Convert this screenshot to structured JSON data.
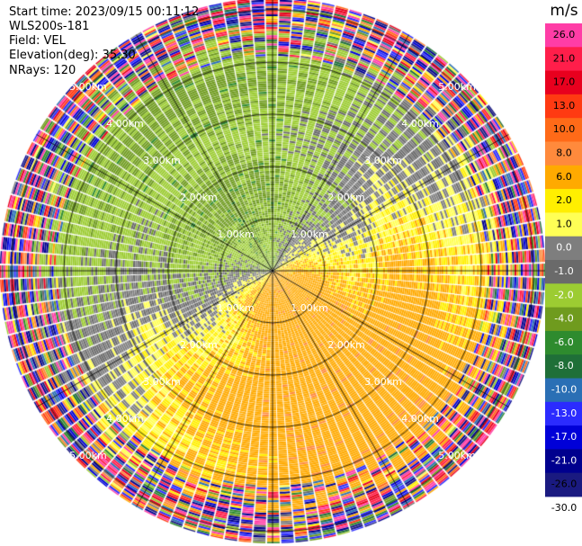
{
  "info": {
    "start_time": "Start time: 2023/09/15 00:11:12",
    "instrument": "WLS200s-181",
    "field": "Field: VEL",
    "elevation": "Elevation(deg): 35.30",
    "nrays": "NRays: 120"
  },
  "chart_data": {
    "type": "heatmap",
    "projection": "polar-ppi",
    "field": "VEL",
    "units": "m/s",
    "range_rings_km": [
      1,
      2,
      3,
      4,
      5
    ],
    "range_ring_labels": [
      "1.00km",
      "2.00km",
      "3.00km",
      "4.00km",
      "5.00km"
    ],
    "max_range_km": 7.2,
    "n_rays": 120,
    "azimuth_spokes_deg": [
      0,
      30,
      60,
      90,
      120,
      150,
      180,
      210,
      240,
      270,
      300,
      330
    ],
    "colorbar": {
      "title": "m/s",
      "boundaries": [
        26,
        21,
        17,
        13,
        10,
        8,
        6,
        2,
        1,
        0,
        -1,
        -2,
        -4,
        -6,
        -8,
        -10,
        -13,
        -17,
        -21,
        -26,
        -30
      ],
      "tick_labels": [
        "26.0",
        "21.0",
        "17.0",
        "13.0",
        "10.0",
        "8.0",
        "6.0",
        "2.0",
        "1.0",
        "0.0",
        "-1.0",
        "-2.0",
        "-4.0",
        "-6.0",
        "-8.0",
        "-10.0",
        "-13.0",
        "-17.0",
        "-21.0",
        "-26.0",
        "-30.0"
      ],
      "colors": [
        "#ff3da6",
        "#ff1e4a",
        "#e8001e",
        "#ff3a12",
        "#ff6a18",
        "#ff8a3c",
        "#ffaa00",
        "#ffef00",
        "#ffff55",
        "#7e7e7e",
        "#6a6a6a",
        "#9ccc32",
        "#6f9b1e",
        "#2e8b2e",
        "#1f6f38",
        "#2a6fb5",
        "#2b2bff",
        "#0000d8",
        "#00008e",
        "#1a1a80"
      ]
    },
    "velocity_pattern": "Positive (yellow/orange, ~2-6 m/s) toward south and east; negative (green/grey, ~-2 to -6 m/s) toward north and west; noisy multicolour speckle beyond ~4.5 km range"
  }
}
